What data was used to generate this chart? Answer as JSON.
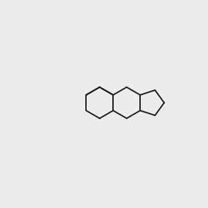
{
  "bg_color": "#ececec",
  "bond_color": "#1a1a1a",
  "o_color": "#e8000e",
  "n_color": "#4a9a9a",
  "wedge_color": "#1a4dbf",
  "line_width": 1.4,
  "font_size": 9.5
}
